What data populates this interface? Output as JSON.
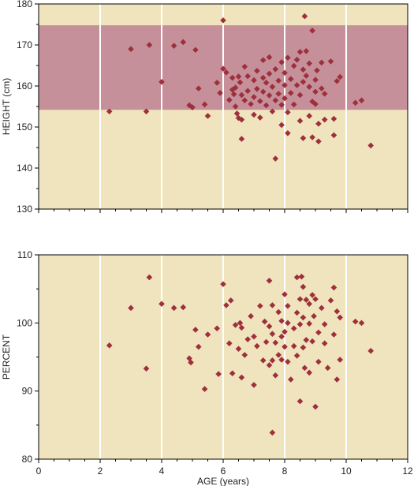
{
  "figure": {
    "background": "#ffffff",
    "plot_bg": "#efe4bd",
    "band_color": "#c5909a",
    "marker_color": "#9e2f3c",
    "grid_color": "#ffffff"
  },
  "chart_data": [
    {
      "type": "scatter",
      "xlabel": "",
      "ylabel": "HEIGHT (cm)",
      "xlim": [
        0,
        12
      ],
      "ylim": [
        130,
        180
      ],
      "xticks": [
        0,
        2,
        4,
        6,
        8,
        10,
        12
      ],
      "yticks": [
        130,
        140,
        150,
        160,
        170,
        180
      ],
      "x_tick_labels_shown": false,
      "vertical_grid": [
        2,
        4,
        6,
        8,
        10
      ],
      "shaded_band": [
        154.2,
        174.8
      ],
      "marker": "diamond",
      "points": [
        [
          2.3,
          153.8
        ],
        [
          3.0,
          169.0
        ],
        [
          3.5,
          153.8
        ],
        [
          3.6,
          170.0
        ],
        [
          4.0,
          161.0
        ],
        [
          4.4,
          169.8
        ],
        [
          4.7,
          170.7
        ],
        [
          4.9,
          155.3
        ],
        [
          5.0,
          154.8
        ],
        [
          5.1,
          168.8
        ],
        [
          5.2,
          159.4
        ],
        [
          5.4,
          155.5
        ],
        [
          5.5,
          152.7
        ],
        [
          5.8,
          160.8
        ],
        [
          5.9,
          158.3
        ],
        [
          6.0,
          176.0
        ],
        [
          6.0,
          164.2
        ],
        [
          6.1,
          163.3
        ],
        [
          6.2,
          156.6
        ],
        [
          6.3,
          162.0
        ],
        [
          6.3,
          159.1
        ],
        [
          6.35,
          158.0
        ],
        [
          6.4,
          159.6
        ],
        [
          6.4,
          155.0
        ],
        [
          6.45,
          153.3
        ],
        [
          6.5,
          152.2
        ],
        [
          6.5,
          162.3
        ],
        [
          6.55,
          160.9
        ],
        [
          6.6,
          157.8
        ],
        [
          6.6,
          151.8
        ],
        [
          6.6,
          147.1
        ],
        [
          6.7,
          164.7
        ],
        [
          6.7,
          156.5
        ],
        [
          6.8,
          162.4
        ],
        [
          6.8,
          158.8
        ],
        [
          6.9,
          155.6
        ],
        [
          7.0,
          161.4
        ],
        [
          7.0,
          157.3
        ],
        [
          7.0,
          153.0
        ],
        [
          7.1,
          163.7
        ],
        [
          7.1,
          159.3
        ],
        [
          7.2,
          156.3
        ],
        [
          7.2,
          152.3
        ],
        [
          7.3,
          166.3
        ],
        [
          7.3,
          162.0
        ],
        [
          7.3,
          158.6
        ],
        [
          7.4,
          155.3
        ],
        [
          7.4,
          160.8
        ],
        [
          7.5,
          167.0
        ],
        [
          7.5,
          163.0
        ],
        [
          7.5,
          157.7
        ],
        [
          7.6,
          153.8
        ],
        [
          7.6,
          159.8
        ],
        [
          7.7,
          164.1
        ],
        [
          7.7,
          156.5
        ],
        [
          7.7,
          142.3
        ],
        [
          7.8,
          161.3
        ],
        [
          7.8,
          158.1
        ],
        [
          7.9,
          165.8
        ],
        [
          7.9,
          155.4
        ],
        [
          7.9,
          150.5
        ],
        [
          8.0,
          163.2
        ],
        [
          8.0,
          160.2
        ],
        [
          8.0,
          157.0
        ],
        [
          8.1,
          166.9
        ],
        [
          8.1,
          153.6
        ],
        [
          8.1,
          148.5
        ],
        [
          8.2,
          161.7
        ],
        [
          8.2,
          158.3
        ],
        [
          8.3,
          164.9
        ],
        [
          8.3,
          155.5
        ],
        [
          8.4,
          166.4
        ],
        [
          8.4,
          160.2
        ],
        [
          8.5,
          168.3
        ],
        [
          8.5,
          157.8
        ],
        [
          8.5,
          151.5
        ],
        [
          8.6,
          164.0
        ],
        [
          8.6,
          161.0
        ],
        [
          8.6,
          147.3
        ],
        [
          8.65,
          177.0
        ],
        [
          8.7,
          168.5
        ],
        [
          8.7,
          162.5
        ],
        [
          8.8,
          165.5
        ],
        [
          8.8,
          159.8
        ],
        [
          8.8,
          152.7
        ],
        [
          8.9,
          173.5
        ],
        [
          8.9,
          156.2
        ],
        [
          8.9,
          147.5
        ],
        [
          9.0,
          161.5
        ],
        [
          9.0,
          158.6
        ],
        [
          9.0,
          155.6
        ],
        [
          9.05,
          163.8
        ],
        [
          9.1,
          150.8
        ],
        [
          9.1,
          146.5
        ],
        [
          9.2,
          159.4
        ],
        [
          9.2,
          165.7
        ],
        [
          9.3,
          158.1
        ],
        [
          9.3,
          151.8
        ],
        [
          9.5,
          166.0
        ],
        [
          9.6,
          152.0
        ],
        [
          9.6,
          148.0
        ],
        [
          9.7,
          161.2
        ],
        [
          9.8,
          162.2
        ],
        [
          10.3,
          155.9
        ],
        [
          10.5,
          156.5
        ],
        [
          10.8,
          145.5
        ]
      ]
    },
    {
      "type": "scatter",
      "xlabel": "AGE (years)",
      "ylabel": "PERCENT",
      "xlim": [
        0,
        12
      ],
      "ylim": [
        80,
        110
      ],
      "xticks": [
        0,
        2,
        4,
        6,
        8,
        10,
        12
      ],
      "yticks": [
        80,
        90,
        100,
        110
      ],
      "vertical_grid": [
        2,
        4,
        6,
        8,
        10
      ],
      "marker": "diamond",
      "points": [
        [
          2.3,
          96.7
        ],
        [
          3.0,
          102.2
        ],
        [
          3.5,
          93.3
        ],
        [
          3.6,
          106.7
        ],
        [
          4.0,
          102.8
        ],
        [
          4.4,
          102.2
        ],
        [
          4.7,
          102.3
        ],
        [
          4.9,
          94.8
        ],
        [
          4.95,
          94.2
        ],
        [
          5.1,
          99.0
        ],
        [
          5.2,
          96.5
        ],
        [
          5.4,
          90.3
        ],
        [
          5.5,
          98.3
        ],
        [
          5.8,
          99.2
        ],
        [
          5.85,
          92.5
        ],
        [
          6.0,
          105.7
        ],
        [
          6.1,
          102.6
        ],
        [
          6.2,
          97.0
        ],
        [
          6.25,
          103.3
        ],
        [
          6.3,
          92.6
        ],
        [
          6.4,
          99.7
        ],
        [
          6.5,
          96.2
        ],
        [
          6.55,
          100.0
        ],
        [
          6.6,
          92.0
        ],
        [
          6.6,
          99.3
        ],
        [
          6.7,
          95.3
        ],
        [
          6.8,
          97.6
        ],
        [
          6.9,
          101.0
        ],
        [
          7.0,
          98.0
        ],
        [
          7.0,
          90.9
        ],
        [
          7.1,
          96.6
        ],
        [
          7.2,
          102.5
        ],
        [
          7.3,
          94.5
        ],
        [
          7.35,
          100.2
        ],
        [
          7.4,
          97.2
        ],
        [
          7.5,
          106.2
        ],
        [
          7.5,
          99.5
        ],
        [
          7.5,
          93.8
        ],
        [
          7.6,
          102.6
        ],
        [
          7.6,
          98.4
        ],
        [
          7.6,
          94.5
        ],
        [
          7.6,
          83.9
        ],
        [
          7.7,
          97.1
        ],
        [
          7.7,
          92.3
        ],
        [
          7.8,
          95.3
        ],
        [
          7.8,
          101.6
        ],
        [
          7.9,
          98.0
        ],
        [
          7.9,
          94.6
        ],
        [
          7.9,
          100.3
        ],
        [
          8.0,
          104.2
        ],
        [
          8.0,
          98.7
        ],
        [
          8.0,
          96.5
        ],
        [
          8.1,
          102.5
        ],
        [
          8.1,
          94.3
        ],
        [
          8.1,
          100.0
        ],
        [
          8.2,
          91.7
        ],
        [
          8.3,
          99.2
        ],
        [
          8.3,
          96.6
        ],
        [
          8.4,
          106.7
        ],
        [
          8.4,
          101.5
        ],
        [
          8.4,
          95.2
        ],
        [
          8.5,
          103.5
        ],
        [
          8.5,
          99.8
        ],
        [
          8.5,
          88.5
        ],
        [
          8.55,
          106.8
        ],
        [
          8.6,
          105.3
        ],
        [
          8.6,
          100.8
        ],
        [
          8.6,
          96.4
        ],
        [
          8.65,
          93.4
        ],
        [
          8.7,
          103.4
        ],
        [
          8.7,
          97.5
        ],
        [
          8.8,
          102.8
        ],
        [
          8.8,
          99.9
        ],
        [
          8.8,
          92.7
        ],
        [
          8.9,
          104.1
        ],
        [
          8.9,
          97.3
        ],
        [
          8.95,
          101.0
        ],
        [
          9.0,
          87.7
        ],
        [
          9.0,
          103.5
        ],
        [
          9.1,
          98.6
        ],
        [
          9.1,
          94.3
        ],
        [
          9.2,
          102.2
        ],
        [
          9.3,
          97.0
        ],
        [
          9.3,
          99.8
        ],
        [
          9.4,
          93.4
        ],
        [
          9.5,
          103.3
        ],
        [
          9.6,
          105.2
        ],
        [
          9.6,
          98.3
        ],
        [
          9.7,
          91.7
        ],
        [
          9.7,
          101.7
        ],
        [
          9.8,
          94.6
        ],
        [
          9.8,
          100.8
        ],
        [
          10.3,
          100.2
        ],
        [
          10.5,
          100.0
        ],
        [
          10.8,
          95.9
        ]
      ]
    }
  ]
}
